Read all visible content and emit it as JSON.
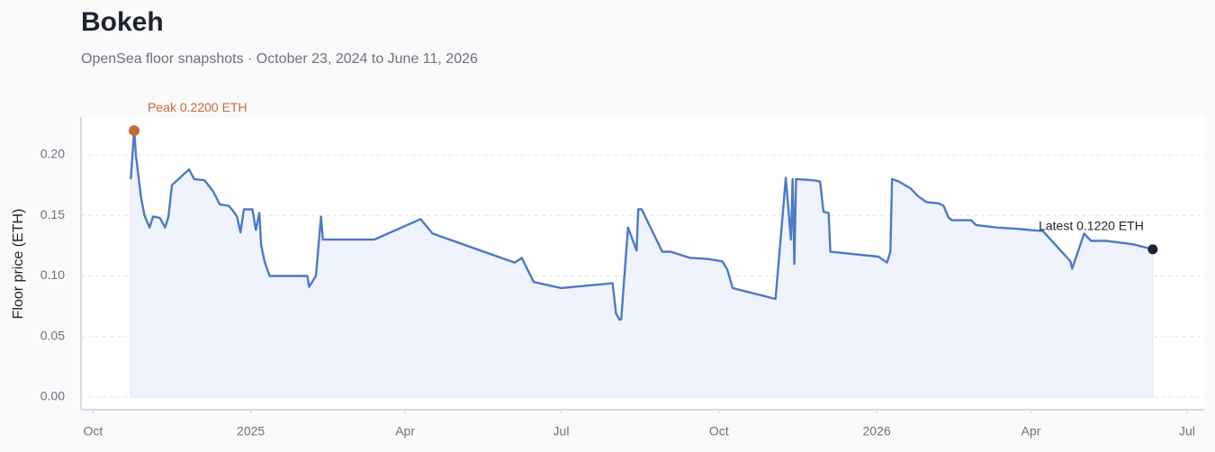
{
  "chart_data": {
    "type": "line",
    "title": "Bokeh",
    "subtitle": "OpenSea floor snapshots · October 23, 2024 to June 11, 2026",
    "y_label": "Floor price (ETH)",
    "annotations": [
      "Peak 0.2200 ETH",
      "Latest 0.1220 ETH"
    ],
    "x": [
      "2024-10-23",
      "2024-10-25",
      "2024-10-26",
      "2024-10-27",
      "2024-10-29",
      "2024-10-31",
      "2024-11-03",
      "2024-11-05",
      "2024-11-09",
      "2024-11-12",
      "2024-11-14",
      "2024-11-16",
      "2024-11-26",
      "2024-11-29",
      "2024-12-05",
      "2024-12-10",
      "2024-12-14",
      "2024-12-19",
      "2024-12-21",
      "2024-12-24",
      "2024-12-26",
      "2024-12-28",
      "2025-01-02",
      "2025-01-04",
      "2025-01-06",
      "2025-01-07",
      "2025-01-09",
      "2025-01-12",
      "2025-02-03",
      "2025-02-04",
      "2025-02-08",
      "2025-02-11",
      "2025-02-12",
      "2025-03-14",
      "2025-04-10",
      "2025-04-17",
      "2025-06-04",
      "2025-06-08",
      "2025-06-15",
      "2025-07-01",
      "2025-07-31",
      "2025-08-02",
      "2025-08-04",
      "2025-08-05",
      "2025-08-09",
      "2025-08-14",
      "2025-08-15",
      "2025-08-17",
      "2025-08-29",
      "2025-09-03",
      "2025-09-14",
      "2025-09-25",
      "2025-10-03",
      "2025-10-06",
      "2025-10-09",
      "2025-11-03",
      "2025-11-09",
      "2025-11-12",
      "2025-11-13",
      "2025-11-14",
      "2025-11-15",
      "2025-11-25",
      "2025-11-29",
      "2025-12-01",
      "2025-12-04",
      "2025-12-05",
      "2026-01-02",
      "2026-01-07",
      "2026-01-09",
      "2026-01-10",
      "2026-01-14",
      "2026-01-21",
      "2026-01-25",
      "2026-01-30",
      "2026-02-06",
      "2026-02-09",
      "2026-02-12",
      "2026-02-14",
      "2026-02-25",
      "2026-02-28",
      "2026-03-12",
      "2026-03-23",
      "2026-04-08",
      "2026-04-24",
      "2026-04-25",
      "2026-05-02",
      "2026-05-06",
      "2026-05-15",
      "2026-05-26",
      "2026-05-31",
      "2026-06-11"
    ],
    "series": [
      {
        "name": "Floor price",
        "color": "#4e79c4",
        "values": [
          0.18,
          0.22,
          0.2,
          0.188,
          0.165,
          0.15,
          0.14,
          0.149,
          0.148,
          0.14,
          0.149,
          0.175,
          0.188,
          0.18,
          0.179,
          0.17,
          0.159,
          0.158,
          0.155,
          0.149,
          0.136,
          0.155,
          0.155,
          0.138,
          0.152,
          0.126,
          0.112,
          0.1,
          0.1,
          0.091,
          0.1,
          0.149,
          0.13,
          0.13,
          0.147,
          0.135,
          0.111,
          0.115,
          0.095,
          0.09,
          0.094,
          0.069,
          0.064,
          0.064,
          0.14,
          0.121,
          0.155,
          0.155,
          0.12,
          0.12,
          0.115,
          0.114,
          0.112,
          0.105,
          0.09,
          0.081,
          0.181,
          0.13,
          0.18,
          0.11,
          0.18,
          0.179,
          0.178,
          0.153,
          0.152,
          0.12,
          0.116,
          0.111,
          0.12,
          0.18,
          0.178,
          0.172,
          0.166,
          0.161,
          0.16,
          0.158,
          0.148,
          0.146,
          0.146,
          0.142,
          0.14,
          0.139,
          0.137,
          0.112,
          0.106,
          0.135,
          0.129,
          0.129,
          0.127,
          0.126,
          0.122
        ]
      }
    ],
    "xlim": [
      "2024-09-24",
      "2026-07-11"
    ],
    "xticks": [
      {
        "value": "2024-10-01",
        "label": "Oct"
      },
      {
        "value": "2025-01-01",
        "label": "2025"
      },
      {
        "value": "2025-04-01",
        "label": "Apr"
      },
      {
        "value": "2025-07-01",
        "label": "Jul"
      },
      {
        "value": "2025-10-01",
        "label": "Oct"
      },
      {
        "value": "2026-01-01",
        "label": "2026"
      },
      {
        "value": "2026-04-01",
        "label": "Apr"
      },
      {
        "value": "2026-07-01",
        "label": "Jul"
      }
    ],
    "ylim": [
      -0.0104,
      0.2312
    ],
    "yticks": [
      {
        "value": 0,
        "label": "0.00"
      },
      {
        "value": 0.05,
        "label": "0.05"
      },
      {
        "value": 0.1,
        "label": "0.10"
      },
      {
        "value": 0.15,
        "label": "0.15"
      },
      {
        "value": 0.2,
        "label": "0.20"
      }
    ],
    "grid": true,
    "area_color": "#eef3fd",
    "peak_color": "#c8693a",
    "latest_color": "#1f2230"
  }
}
